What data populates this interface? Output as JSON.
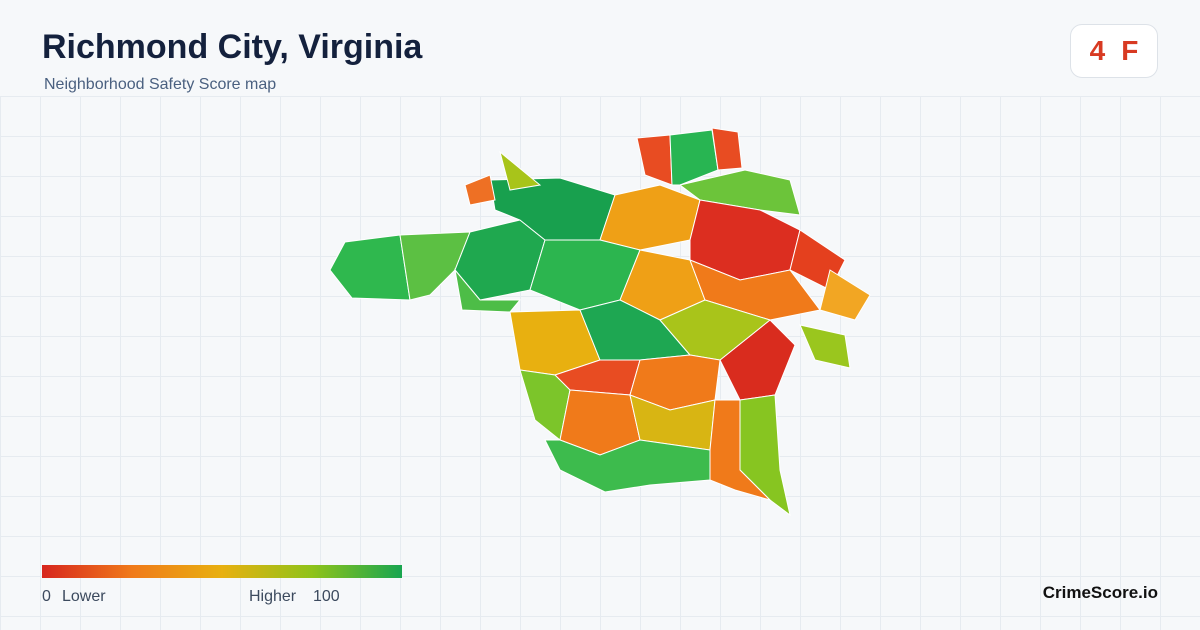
{
  "header": {
    "title": "Richmond City, Virginia",
    "subtitle": "Neighborhood Safety Score map"
  },
  "badge": {
    "score": "4",
    "grade": "F"
  },
  "legend": {
    "min": "0",
    "min_label": "Lower",
    "max_label": "Higher",
    "max": "100"
  },
  "brand": "CrimeScore.io"
}
